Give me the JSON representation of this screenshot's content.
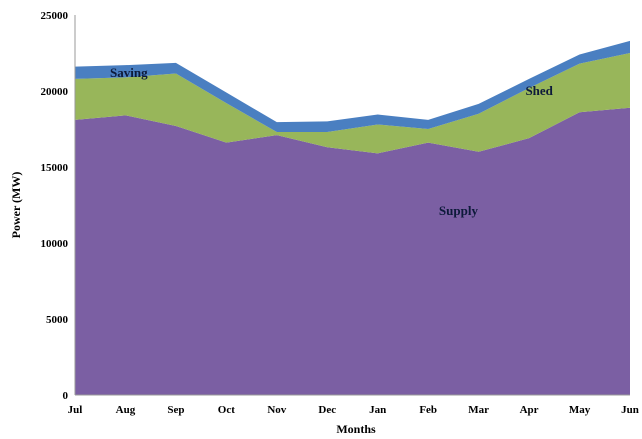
{
  "chart_data": {
    "type": "area",
    "stacked": true,
    "categories": [
      "Jul",
      "Aug",
      "Sep",
      "Oct",
      "Nov",
      "Dec",
      "Jan",
      "Feb",
      "Mar",
      "Apr",
      "May",
      "Jun"
    ],
    "series": [
      {
        "name": "Supply",
        "color": "#7b5fa3",
        "values": [
          18100,
          18400,
          17700,
          16600,
          17100,
          16300,
          15900,
          16600,
          16000,
          16900,
          18600,
          18900
        ]
      },
      {
        "name": "Shed",
        "color": "#98b65a",
        "values": [
          2700,
          2500,
          3450,
          2600,
          200,
          1000,
          1900,
          900,
          2500,
          3300,
          3200,
          3600
        ]
      },
      {
        "name": "Saving",
        "color": "#4a7fc1",
        "values": [
          800,
          800,
          700,
          700,
          650,
          700,
          650,
          600,
          650,
          600,
          600,
          800
        ]
      }
    ],
    "xlabel": "Months",
    "ylabel": "Power (MW)",
    "ylim": [
      0,
      25000
    ],
    "yticks": [
      0,
      5000,
      10000,
      15000,
      20000,
      25000
    ],
    "grid": false,
    "legend": "none"
  }
}
